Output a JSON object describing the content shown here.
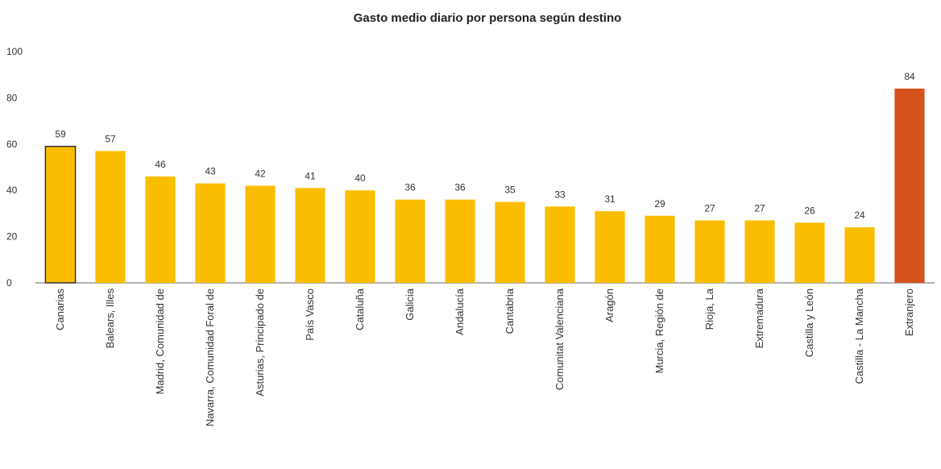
{
  "chart_data": {
    "type": "bar",
    "title": "Gasto medio diario por persona según destino",
    "xlabel": "",
    "ylabel": "",
    "ylim": [
      0,
      100
    ],
    "yticks": [
      0,
      20,
      40,
      60,
      80,
      100
    ],
    "grid": false,
    "legend": "none",
    "categories": [
      "Canarias",
      "Balears, Illes",
      "Madrid, Comunidad de",
      "Navarra, Comunidad Foral de",
      "Asturias, Principado de",
      "País Vasco",
      "Cataluña",
      "Galicia",
      "Andalucía",
      "Cantabria",
      "Comunitat Valenciana",
      "Aragón",
      "Murcia, Región de",
      "Rioja, La",
      "Extremadura",
      "Castilla y León",
      "Castilla - La Mancha",
      "Extranjero"
    ],
    "values": [
      59,
      57,
      46,
      43,
      42,
      41,
      40,
      36,
      36,
      35,
      33,
      31,
      29,
      27,
      27,
      26,
      24,
      84
    ],
    "bar_colors": [
      "#fbbd00",
      "#fbbd00",
      "#fbbd00",
      "#fbbd00",
      "#fbbd00",
      "#fbbd00",
      "#fbbd00",
      "#fbbd00",
      "#fbbd00",
      "#fbbd00",
      "#fbbd00",
      "#fbbd00",
      "#fbbd00",
      "#fbbd00",
      "#fbbd00",
      "#fbbd00",
      "#fbbd00",
      "#d4531c"
    ],
    "highlight_outline_color": "#333333"
  }
}
